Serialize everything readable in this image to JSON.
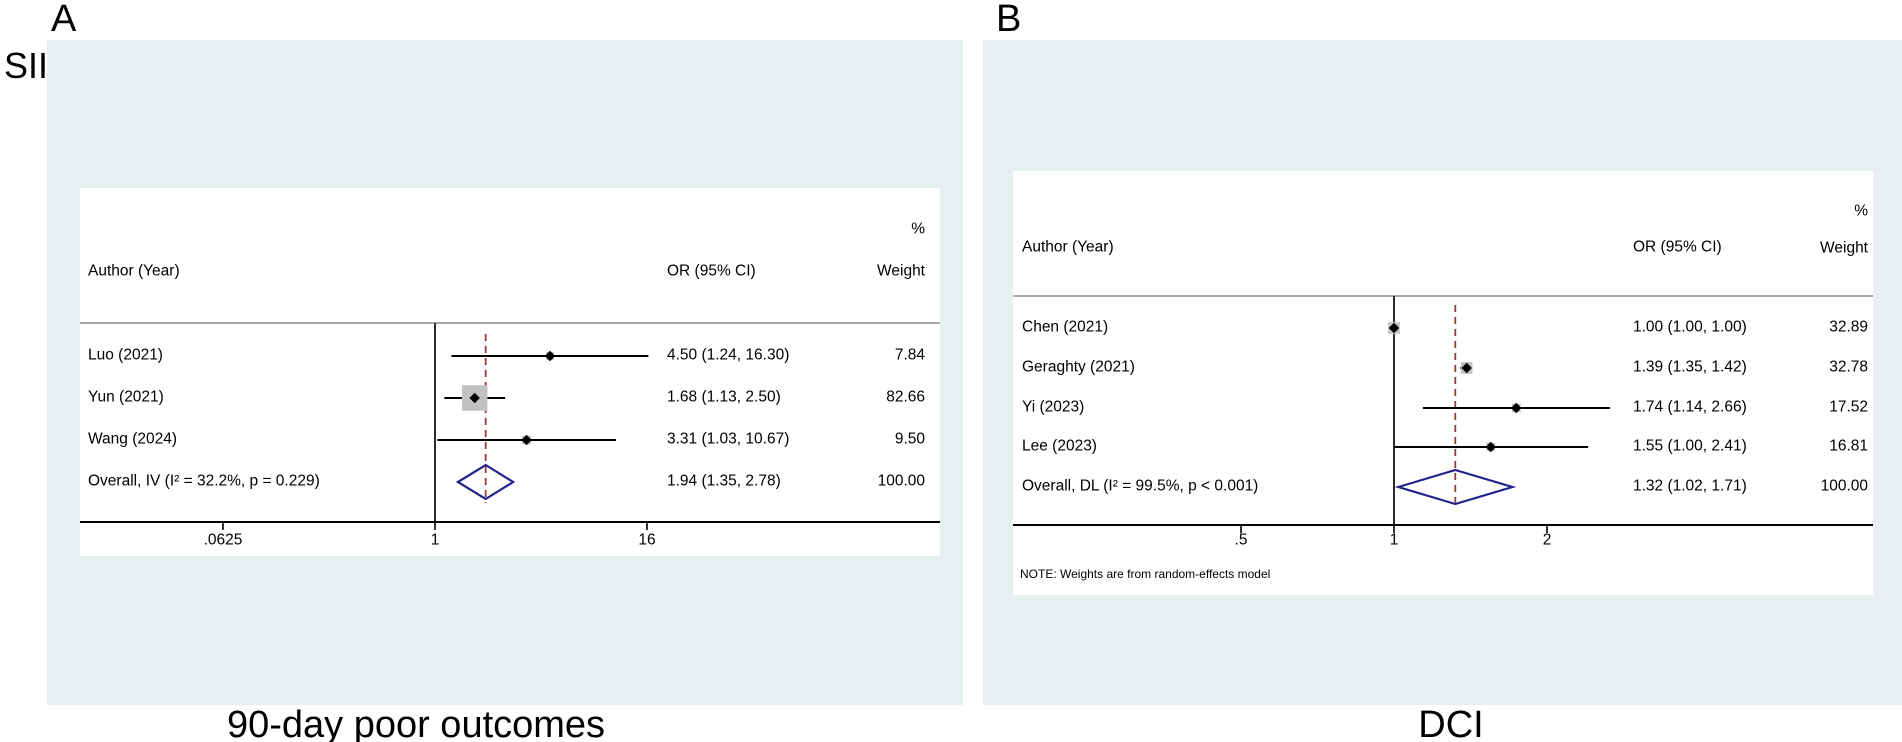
{
  "colors": {
    "panel_background": "#e7eff1",
    "ci_line": "#000000",
    "weight_square": "#c2c2c2",
    "point_marker": "#000000",
    "null_line": "#2a2a2a",
    "overall_dashed_line": "#9c3a3a",
    "overall_diamond": "#22228a",
    "header_divider": "#a8a8a8",
    "axis_line": "#000000"
  },
  "chart_data": [
    {
      "type": "forest",
      "panel_label": "A",
      "group_label": "SII",
      "caption": "90-day poor outcomes",
      "x_scale": "log2",
      "legend_position": "none",
      "grid": false,
      "columns": {
        "author": "Author (Year)",
        "or": "OR (95% CI)",
        "pct": "%",
        "weight": "Weight"
      },
      "x_ticks": [
        {
          "value": 0.0625,
          "label": ".0625"
        },
        {
          "value": 1,
          "label": "1"
        },
        {
          "value": 16,
          "label": "16"
        }
      ],
      "studies": [
        {
          "author": "Luo (2021)",
          "or": 4.5,
          "ci_low": 1.24,
          "ci_high": 16.3,
          "or_text": "4.50 (1.24, 16.30)",
          "weight_pct": 7.84,
          "weight_text": "7.84"
        },
        {
          "author": "Yun (2021)",
          "or": 1.68,
          "ci_low": 1.13,
          "ci_high": 2.5,
          "or_text": "1.68 (1.13, 2.50)",
          "weight_pct": 82.66,
          "weight_text": "82.66"
        },
        {
          "author": "Wang (2024)",
          "or": 3.31,
          "ci_low": 1.03,
          "ci_high": 10.67,
          "or_text": "3.31 (1.03, 10.67)",
          "weight_pct": 9.5,
          "weight_text": "9.50"
        }
      ],
      "overall": {
        "author": "Overall, IV (I² = 32.2%, p = 0.229)",
        "or": 1.94,
        "ci_low": 1.35,
        "ci_high": 2.78,
        "or_text": "1.94 (1.35, 2.78)",
        "weight_pct": 100.0,
        "weight_text": "100.00"
      },
      "note": ""
    },
    {
      "type": "forest",
      "panel_label": "B",
      "group_label": "",
      "caption": "DCI",
      "x_scale": "log2",
      "legend_position": "none",
      "grid": false,
      "columns": {
        "author": "Author (Year)",
        "or": "OR (95% CI)",
        "pct": "%",
        "weight": "Weight"
      },
      "x_ticks": [
        {
          "value": 0.5,
          "label": ".5"
        },
        {
          "value": 1,
          "label": "1"
        },
        {
          "value": 2,
          "label": "2"
        }
      ],
      "studies": [
        {
          "author": "Chen (2021)",
          "or": 1.0,
          "ci_low": 1.0,
          "ci_high": 1.0,
          "or_text": "1.00 (1.00, 1.00)",
          "weight_pct": 32.89,
          "weight_text": "32.89"
        },
        {
          "author": "Geraghty (2021)",
          "or": 1.39,
          "ci_low": 1.35,
          "ci_high": 1.42,
          "or_text": "1.39 (1.35, 1.42)",
          "weight_pct": 32.78,
          "weight_text": "32.78"
        },
        {
          "author": "Yi (2023)",
          "or": 1.74,
          "ci_low": 1.14,
          "ci_high": 2.66,
          "or_text": "1.74 (1.14, 2.66)",
          "weight_pct": 17.52,
          "weight_text": "17.52"
        },
        {
          "author": "Lee (2023)",
          "or": 1.55,
          "ci_low": 1.0,
          "ci_high": 2.41,
          "or_text": "1.55 (1.00, 2.41)",
          "weight_pct": 16.81,
          "weight_text": "16.81"
        }
      ],
      "overall": {
        "author": "Overall, DL (I² = 99.5%, p < 0.001)",
        "or": 1.32,
        "ci_low": 1.02,
        "ci_high": 1.71,
        "or_text": "1.32 (1.02, 1.71)",
        "weight_pct": 100.0,
        "weight_text": "100.00"
      },
      "note": "NOTE: Weights are from random-effects model"
    }
  ]
}
